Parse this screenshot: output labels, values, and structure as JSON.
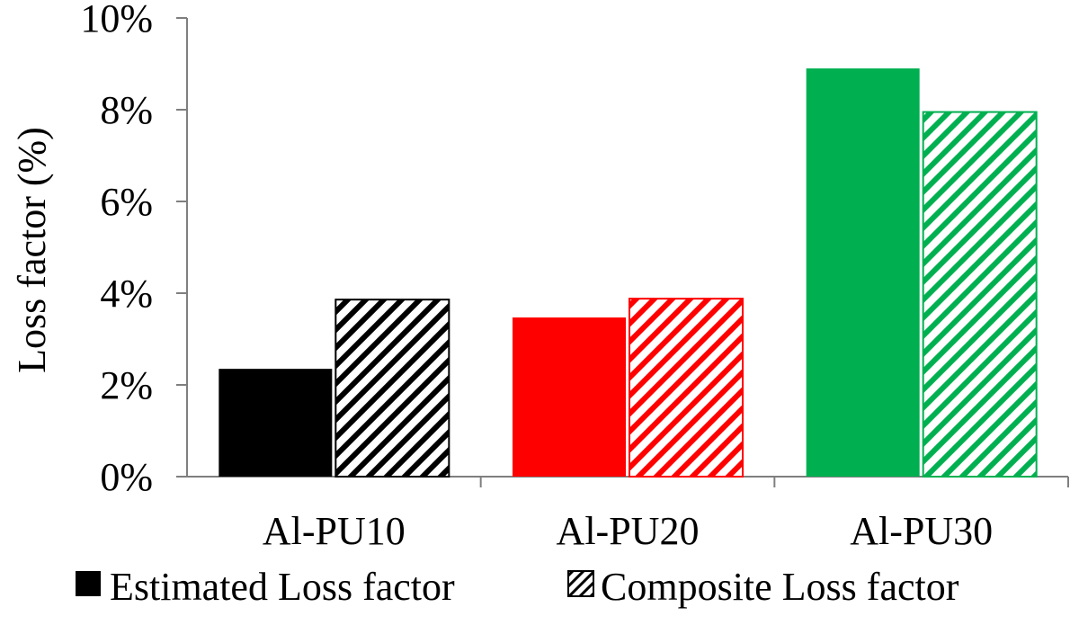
{
  "chart_data": {
    "type": "bar",
    "title": "",
    "xlabel": "",
    "ylabel": "Loss factor (%)",
    "categories": [
      "Al-PU10",
      "Al-PU20",
      "Al-PU30"
    ],
    "series": [
      {
        "name": "Estimated Loss factor",
        "style": "solid",
        "values": [
          2.35,
          3.47,
          8.9
        ]
      },
      {
        "name": "Composite Loss factor",
        "style": "hatched",
        "values": [
          3.86,
          3.88,
          7.95
        ]
      }
    ],
    "category_colors": [
      "#000000",
      "#ff0000",
      "#00b050"
    ],
    "ylim": [
      0,
      10
    ],
    "yticks": [
      0,
      2,
      4,
      6,
      8,
      10
    ],
    "ytick_labels": [
      "0%",
      "2%",
      "4%",
      "6%",
      "8%",
      "10%"
    ],
    "grid": false,
    "legend_position": "bottom"
  }
}
